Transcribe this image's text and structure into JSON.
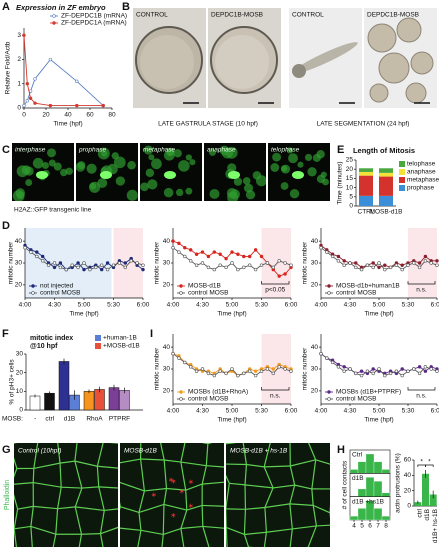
{
  "figure": {
    "panel_labels": [
      "A",
      "B",
      "C",
      "D",
      "E",
      "F",
      "G",
      "H",
      "I"
    ],
    "B_labels": [
      "CONTROL",
      "DEPDC1B-MOSB",
      "CONTROL",
      "DEPDC1B-MOSB"
    ],
    "B_captions": [
      "LATE GASTRULA STAGE (10 hpf)",
      "LATE SEGMENTATION (24 hpf)"
    ],
    "C_labels": [
      "interphase",
      "prophase",
      "metaphase",
      "anaphase",
      "telophase"
    ],
    "C_caption": "H2AZ::GFP transgenic line",
    "G_labels": [
      "Control (10hpf)",
      "MOSB-d1B",
      "MOSB-d1B + hs-1B"
    ],
    "G_stain": "Phalloidin"
  },
  "chart_data": [
    {
      "type": "line",
      "title": "Expression in ZF embryo",
      "x_label": "Time (hpf)",
      "y_label": "Relative Fold/Actb",
      "xlim": [
        0,
        80
      ],
      "ylim": [
        0,
        3.3
      ],
      "xticks": [
        0,
        20,
        40,
        60,
        80
      ],
      "yticks": [
        0,
        1,
        2,
        3
      ],
      "legend": "upper right",
      "x": [
        0,
        3,
        6,
        10,
        24,
        48,
        72
      ],
      "series": [
        {
          "name": "ZF-DEPDC1B (mRNA)",
          "color": "#5b7fc4",
          "marker": "open",
          "values": [
            0.1,
            0.3,
            0.7,
            1.2,
            2.0,
            1.1,
            0.1
          ]
        },
        {
          "name": "ZF-DEPDC1A (mRNA)",
          "color": "#d43a2f",
          "marker": "filled",
          "values": [
            3.0,
            1.0,
            0.4,
            0.2,
            0.1,
            0.1,
            0.1
          ]
        }
      ]
    },
    {
      "type": "stacked-bar",
      "title": "Length of Mitosis",
      "y_label": "Time (minutes)",
      "ylim": [
        0,
        25
      ],
      "yticks": [
        0,
        5,
        10,
        15,
        20,
        25
      ],
      "categories": [
        "CTRL",
        "MOSB-d1B"
      ],
      "series": [
        {
          "name": "prophase",
          "color": "#3a8fd8",
          "values": [
            5.5,
            5.5
          ]
        },
        {
          "name": "metaphase",
          "color": "#d4322c",
          "values": [
            11,
            10.5
          ]
        },
        {
          "name": "anaphase",
          "color": "#f2e23a",
          "values": [
            2,
            2
          ]
        },
        {
          "name": "telophase",
          "color": "#4aa83e",
          "values": [
            2,
            2.5
          ]
        }
      ]
    },
    {
      "type": "line",
      "x_label": "Time (hpf)",
      "y_label": "mitotic number",
      "xlim": [
        4,
        6
      ],
      "ylim": [
        14,
        46
      ],
      "xticks": [
        {
          "value": 4,
          "label": "4:00"
        },
        {
          "value": 4.5,
          "label": "4:30"
        },
        {
          "value": 5,
          "label": "5:00"
        },
        {
          "value": 5.5,
          "label": "5:30"
        },
        {
          "value": 6,
          "label": "6:00"
        }
      ],
      "yticks": [
        20,
        30,
        40
      ],
      "legend": "lower left",
      "x": [
        4.0,
        4.1,
        4.2,
        4.3,
        4.4,
        4.5,
        4.6,
        4.7,
        4.8,
        4.9,
        5.0,
        5.1,
        5.2,
        5.3,
        5.4,
        5.5,
        5.6,
        5.7,
        5.8,
        5.9,
        6.0
      ],
      "series": [
        {
          "name": "not injected",
          "color": "#1f2a7a",
          "marker": "filled",
          "values": [
            38,
            36,
            35,
            33,
            30,
            28,
            30,
            27,
            28,
            30,
            27,
            28,
            29,
            27,
            30,
            28,
            31,
            30,
            32,
            29,
            27
          ]
        },
        {
          "name": "control MOSB",
          "color": "#555555",
          "marker": "open",
          "values": [
            37,
            35,
            33,
            31,
            29,
            30,
            28,
            27,
            29,
            28,
            30,
            27,
            28,
            29,
            27,
            29,
            30,
            28,
            31,
            30,
            29
          ]
        }
      ]
    },
    {
      "type": "line",
      "x_label": "Time (hpf)",
      "y_label": "mitotic number",
      "xlim": [
        4,
        6
      ],
      "ylim": [
        14,
        46
      ],
      "xticks": [
        {
          "value": 4,
          "label": "4:00"
        },
        {
          "value": 4.5,
          "label": "4:30"
        },
        {
          "value": 5,
          "label": "5:00"
        },
        {
          "value": 5.5,
          "label": "5:30"
        },
        {
          "value": 6,
          "label": "6:00"
        }
      ],
      "yticks": [
        20,
        30,
        40
      ],
      "legend": "lower left",
      "annotation": "p<0.05",
      "x": [
        4.0,
        4.1,
        4.2,
        4.3,
        4.4,
        4.5,
        4.6,
        4.7,
        4.8,
        4.9,
        5.0,
        5.1,
        5.2,
        5.3,
        5.4,
        5.5,
        5.6,
        5.7,
        5.8,
        5.9,
        6.0
      ],
      "series": [
        {
          "name": "MOSB-d1B",
          "color": "#d7261e",
          "marker": "filled",
          "values": [
            40,
            39,
            37,
            36,
            34,
            35,
            33,
            35,
            34,
            32,
            35,
            34,
            33,
            33,
            36,
            33,
            30,
            27,
            24,
            25,
            28
          ]
        },
        {
          "name": "control MOSB",
          "color": "#555555",
          "marker": "open",
          "values": [
            37,
            35,
            33,
            31,
            29,
            30,
            28,
            27,
            29,
            28,
            30,
            27,
            28,
            29,
            27,
            29,
            30,
            28,
            31,
            30,
            29
          ]
        }
      ]
    },
    {
      "type": "line",
      "x_label": "Time (hpf)",
      "y_label": "mitotic number",
      "xlim": [
        4,
        6
      ],
      "ylim": [
        14,
        46
      ],
      "xticks": [
        {
          "value": 4,
          "label": "4:00"
        },
        {
          "value": 4.5,
          "label": "4:30"
        },
        {
          "value": 5,
          "label": "5:00"
        },
        {
          "value": 5.5,
          "label": "5:30"
        },
        {
          "value": 6,
          "label": "6:00"
        }
      ],
      "yticks": [
        20,
        30,
        40
      ],
      "legend": "lower left",
      "annotation": "n.s.",
      "x": [
        4.0,
        4.1,
        4.2,
        4.3,
        4.4,
        4.5,
        4.6,
        4.7,
        4.8,
        4.9,
        5.0,
        5.1,
        5.2,
        5.3,
        5.4,
        5.5,
        5.6,
        5.7,
        5.8,
        5.9,
        6.0
      ],
      "series": [
        {
          "name": "MOSB-d1b+human1B",
          "color": "#8a1f2d",
          "marker": "filled",
          "values": [
            38,
            36,
            34,
            33,
            31,
            30,
            30,
            28,
            29,
            30,
            28,
            29,
            28,
            30,
            29,
            30,
            31,
            30,
            33,
            31,
            31
          ]
        },
        {
          "name": "control MOSB",
          "color": "#555555",
          "marker": "open",
          "values": [
            37,
            35,
            33,
            31,
            29,
            30,
            28,
            27,
            29,
            28,
            30,
            27,
            28,
            29,
            27,
            29,
            30,
            28,
            31,
            30,
            29
          ]
        }
      ]
    },
    {
      "type": "grouped-bar",
      "title": "mitotic index",
      "subtitle": "@10 hpf",
      "y_label": "% of pH3+ cells",
      "x_label": "MOSB:",
      "ylim": [
        0,
        30
      ],
      "yticks": [
        0,
        10,
        20,
        30
      ],
      "groups": [
        {
          "label": "-",
          "values": [
            7.5
          ],
          "errors": [
            0.8
          ],
          "colors": [
            "#ffffff"
          ]
        },
        {
          "label": "ctrl",
          "values": [
            9
          ],
          "errors": [
            1
          ],
          "colors": [
            "#111111"
          ]
        },
        {
          "label": "d1B",
          "values": [
            26,
            8
          ],
          "errors": [
            1.5,
            2.5
          ],
          "colors": [
            "#2e3192",
            "#5b7fd6"
          ]
        },
        {
          "label": "RhoA",
          "values": [
            10,
            11
          ],
          "errors": [
            1,
            1.5
          ],
          "colors": [
            "#f7941d",
            "#e8503a"
          ]
        },
        {
          "label": "PTPRF",
          "values": [
            12,
            10.5
          ],
          "errors": [
            1.5,
            1.5
          ],
          "colors": [
            "#7b3f98",
            "#b58cc4"
          ]
        }
      ],
      "legend_entries": [
        {
          "name": "+human-1B",
          "color": "#5b7fd6"
        },
        {
          "name": "+MOSB-d1B",
          "color": "#e8503a"
        }
      ]
    },
    {
      "type": "line",
      "x_label": "Time (hpf)",
      "y_label": "mitotic number",
      "xlim": [
        4,
        6
      ],
      "ylim": [
        14,
        46
      ],
      "xticks": [
        {
          "value": 4,
          "label": "4:00"
        },
        {
          "value": 4.5,
          "label": "4:30"
        },
        {
          "value": 5,
          "label": "5:00"
        },
        {
          "value": 5.5,
          "label": "5:30"
        },
        {
          "value": 6,
          "label": "6:00"
        }
      ],
      "yticks": [
        20,
        30,
        40
      ],
      "legend": "lower left",
      "annotation": "n.s.",
      "x": [
        4.0,
        4.1,
        4.2,
        4.3,
        4.4,
        4.5,
        4.6,
        4.7,
        4.8,
        4.9,
        5.0,
        5.1,
        5.2,
        5.3,
        5.4,
        5.5,
        5.6,
        5.7,
        5.8,
        5.9,
        6.0
      ],
      "series": [
        {
          "name": "MOSBs (d1B+RhoA)",
          "color": "#f29a1f",
          "marker": "filled",
          "values": [
            37,
            36,
            33,
            32,
            30,
            29,
            29,
            28,
            30,
            28,
            29,
            27,
            28,
            30,
            29,
            30,
            31,
            30,
            32,
            31,
            30
          ]
        },
        {
          "name": "control MOSB",
          "color": "#555555",
          "marker": "open",
          "values": [
            37,
            35,
            33,
            31,
            29,
            30,
            28,
            27,
            29,
            28,
            30,
            27,
            28,
            29,
            27,
            29,
            30,
            28,
            31,
            30,
            29
          ]
        }
      ]
    },
    {
      "type": "line",
      "x_label": "Time (hpf)",
      "y_label": "mitotic number",
      "xlim": [
        4,
        6
      ],
      "ylim": [
        14,
        46
      ],
      "xticks": [
        {
          "value": 4,
          "label": "4:00"
        },
        {
          "value": 4.5,
          "label": "4:30"
        },
        {
          "value": 5,
          "label": "5:00"
        },
        {
          "value": 5.5,
          "label": "5:30"
        },
        {
          "value": 6,
          "label": "6:00"
        }
      ],
      "yticks": [
        20,
        30,
        40
      ],
      "legend": "lower left",
      "annotation": "n.s.",
      "x": [
        4.0,
        4.1,
        4.2,
        4.3,
        4.4,
        4.5,
        4.6,
        4.7,
        4.8,
        4.9,
        5.0,
        5.1,
        5.2,
        5.3,
        5.4,
        5.5,
        5.6,
        5.7,
        5.8,
        5.9,
        6.0
      ],
      "series": [
        {
          "name": "MOSBs (d1B+PTPRF)",
          "color": "#5b2a86",
          "marker": "filled",
          "values": [
            37,
            35,
            34,
            32,
            31,
            30,
            28,
            29,
            28,
            30,
            29,
            28,
            29,
            28,
            30,
            29,
            30,
            31,
            29,
            31,
            30
          ]
        },
        {
          "name": "control MOSB",
          "color": "#555555",
          "marker": "open",
          "values": [
            37,
            35,
            33,
            31,
            29,
            30,
            28,
            27,
            29,
            28,
            30,
            27,
            28,
            29,
            27,
            29,
            30,
            28,
            31,
            30,
            29
          ]
        }
      ]
    },
    {
      "type": "histogram",
      "y_label": "# of cell contacts",
      "bins": [
        3.5,
        4.5,
        5.5,
        6.5,
        7.5,
        8.5
      ],
      "xlim": [
        3.5,
        8.5
      ],
      "xticks": [
        4,
        5,
        6,
        7,
        8
      ],
      "series": [
        {
          "name": "Ctrl",
          "color": "#39b54a",
          "values": [
            1,
            3,
            5,
            3,
            1
          ]
        },
        {
          "name": "d1B",
          "color": "#39b54a",
          "values": [
            0,
            2,
            5,
            4,
            1
          ]
        },
        {
          "name": "d1B +hs1B",
          "color": "#39b54a",
          "values": [
            1,
            3,
            5,
            3,
            1
          ]
        }
      ]
    },
    {
      "type": "bar",
      "y_label": "actin protrusions (%)",
      "ylim": [
        0,
        60
      ],
      "yticks": [
        0,
        20,
        40,
        60
      ],
      "color": "#39b54a",
      "categories": [
        "ctrl",
        "d1B",
        "d1B+ hs-1B"
      ],
      "values": [
        5,
        42,
        15
      ],
      "errors": [
        2,
        5,
        5
      ],
      "annotations": [
        "*",
        "*"
      ]
    }
  ]
}
